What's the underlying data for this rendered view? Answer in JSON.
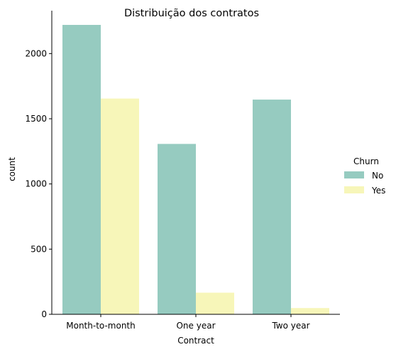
{
  "chart_data": {
    "type": "bar",
    "title": "Distribuição dos contratos",
    "xlabel": "Contract",
    "ylabel": "count",
    "categories": [
      "Month-to-month",
      "One year",
      "Two year"
    ],
    "series": [
      {
        "name": "No",
        "values": [
          2220,
          1307,
          1647
        ],
        "color": "#96cbc0"
      },
      {
        "name": "Yes",
        "values": [
          1655,
          166,
          48
        ],
        "color": "#f7f6b9"
      }
    ],
    "ylim": [
      0,
      2331
    ],
    "yticks": [
      0,
      500,
      1000,
      1500,
      2000
    ],
    "grid": false,
    "legend": {
      "title": "Churn",
      "placement": "right"
    }
  }
}
